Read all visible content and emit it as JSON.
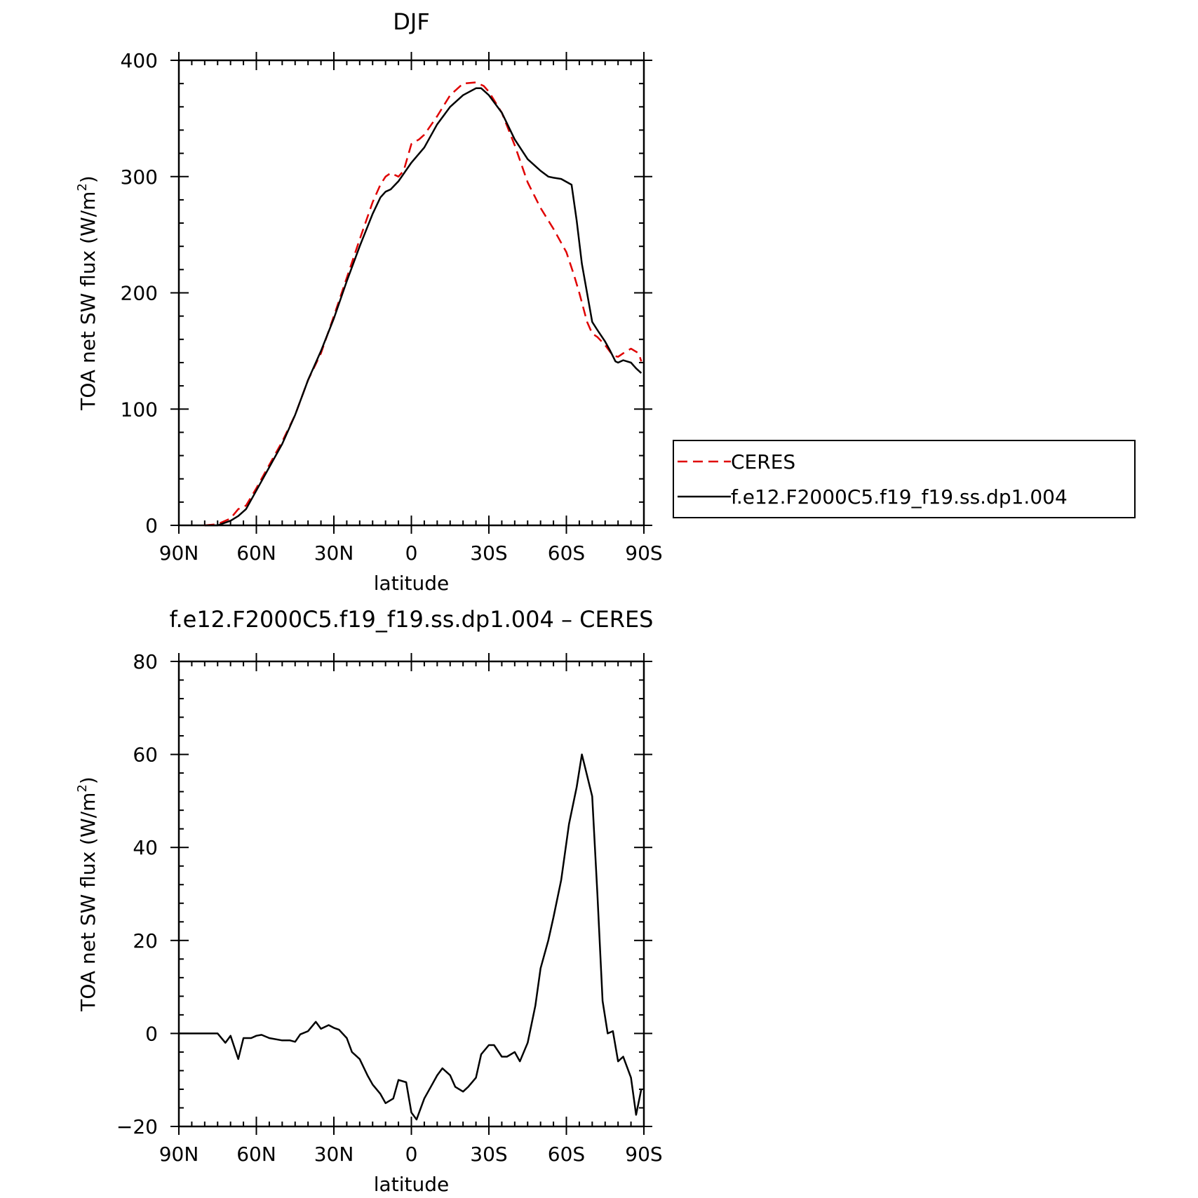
{
  "chart_data": [
    {
      "type": "line",
      "title": "DJF",
      "xlabel": "latitude",
      "ylabel_main": "TOA net SW flux (W/m",
      "ylabel_sup": "2",
      "ylabel_close": ")",
      "xlim": [
        90,
        -90
      ],
      "ylim": [
        0,
        400
      ],
      "x_ticks": [
        {
          "value": 90,
          "label": "90N"
        },
        {
          "value": 60,
          "label": "60N"
        },
        {
          "value": 30,
          "label": "30N"
        },
        {
          "value": 0,
          "label": "0"
        },
        {
          "value": -30,
          "label": "30S"
        },
        {
          "value": -60,
          "label": "60S"
        },
        {
          "value": -90,
          "label": "90S"
        }
      ],
      "y_ticks": [
        {
          "value": 0,
          "label": "0"
        },
        {
          "value": 100,
          "label": "100"
        },
        {
          "value": 200,
          "label": "200"
        },
        {
          "value": 300,
          "label": "300"
        },
        {
          "value": 400,
          "label": "400"
        }
      ],
      "legend_position": "right",
      "series": [
        {
          "name": "CERES",
          "color": "#e00000",
          "dashed": true,
          "x": [
            80,
            75,
            70,
            67,
            64,
            60,
            55,
            50,
            45,
            40,
            35,
            30,
            25,
            20,
            15,
            12,
            10,
            8,
            5,
            3,
            0,
            -3,
            -5,
            -10,
            -15,
            -20,
            -25,
            -28,
            -30,
            -35,
            -40,
            -45,
            -50,
            -55,
            -60,
            -63,
            -65,
            -68,
            -70,
            -72,
            -75,
            -78,
            -80,
            -82,
            -85,
            -88,
            -89
          ],
          "y": [
            0,
            1,
            6,
            14,
            17,
            32,
            52,
            72,
            95,
            125,
            148,
            180,
            213,
            246,
            278,
            293,
            300,
            303,
            300,
            305,
            328,
            332,
            336,
            352,
            370,
            380,
            381,
            378,
            373,
            355,
            327,
            295,
            273,
            255,
            235,
            215,
            200,
            175,
            165,
            162,
            155,
            146,
            145,
            148,
            152,
            148,
            141
          ]
        },
        {
          "name": "f.e12.F2000C5.f19_f19.ss.dp1.004",
          "color": "#000000",
          "dashed": false,
          "x": [
            80,
            75,
            70,
            67,
            64,
            60,
            55,
            50,
            45,
            40,
            35,
            30,
            25,
            20,
            15,
            12,
            10,
            8,
            5,
            0,
            -5,
            -10,
            -15,
            -20,
            -25,
            -27,
            -30,
            -35,
            -40,
            -45,
            -50,
            -53,
            -55,
            -58,
            -62,
            -64,
            -66,
            -70,
            -72,
            -75,
            -77,
            -79,
            -80,
            -82,
            -85,
            -87,
            -89
          ],
          "y": [
            0,
            0,
            4,
            8,
            14,
            30,
            50,
            70,
            95,
            125,
            150,
            178,
            210,
            240,
            268,
            282,
            287,
            289,
            296,
            312,
            325,
            345,
            360,
            370,
            376,
            376,
            370,
            355,
            332,
            315,
            305,
            300,
            299,
            298,
            293,
            262,
            225,
            175,
            168,
            158,
            150,
            141,
            140,
            142,
            140,
            135,
            131
          ]
        }
      ]
    },
    {
      "type": "line",
      "title": "f.e12.F2000C5.f19_f19.ss.dp1.004 – CERES",
      "xlabel": "latitude",
      "ylabel_main": "TOA net SW flux (W/m",
      "ylabel_sup": "2",
      "ylabel_close": ")",
      "xlim": [
        90,
        -90
      ],
      "ylim": [
        -20,
        80
      ],
      "x_ticks": [
        {
          "value": 90,
          "label": "90N"
        },
        {
          "value": 60,
          "label": "60N"
        },
        {
          "value": 30,
          "label": "30N"
        },
        {
          "value": 0,
          "label": "0"
        },
        {
          "value": -30,
          "label": "30S"
        },
        {
          "value": -60,
          "label": "60S"
        },
        {
          "value": -90,
          "label": "90S"
        }
      ],
      "y_ticks": [
        {
          "value": -20,
          "label": "−20"
        },
        {
          "value": 0,
          "label": "0"
        },
        {
          "value": 20,
          "label": "20"
        },
        {
          "value": 40,
          "label": "40"
        },
        {
          "value": 60,
          "label": "60"
        },
        {
          "value": 80,
          "label": "80"
        }
      ],
      "series": [
        {
          "name": "",
          "color": "#000000",
          "dashed": false,
          "x": [
            90,
            85,
            80,
            75,
            72,
            70,
            67,
            65,
            62,
            60,
            58,
            55,
            50,
            47,
            45,
            43,
            40,
            37,
            35,
            32,
            30,
            28,
            25,
            23,
            20,
            17,
            15,
            12,
            10,
            7,
            5,
            2,
            0,
            -2,
            -5,
            -8,
            -10,
            -12,
            -15,
            -17,
            -20,
            -22,
            -25,
            -27,
            -30,
            -32,
            -35,
            -37,
            -40,
            -42,
            -45,
            -48,
            -50,
            -53,
            -55,
            -58,
            -61,
            -64,
            -66,
            -70,
            -72,
            -74,
            -76,
            -78,
            -80,
            -82,
            -85,
            -87,
            -89
          ],
          "y": [
            0,
            0,
            0,
            0,
            -2,
            -0.5,
            -5.5,
            -1,
            -1,
            -0.5,
            -0.3,
            -1,
            -1.5,
            -1.5,
            -1.8,
            -0.2,
            0.5,
            2.5,
            1,
            1.8,
            1.2,
            0.8,
            -1,
            -4,
            -5.5,
            -9,
            -11,
            -13,
            -15,
            -14,
            -10,
            -10.5,
            -17,
            -18.5,
            -14,
            -11,
            -9,
            -7.5,
            -9,
            -11.5,
            -12.5,
            -11.5,
            -9.5,
            -4.5,
            -2.5,
            -2.5,
            -5,
            -5,
            -4,
            -6,
            -2,
            6,
            14,
            20,
            25,
            33,
            45,
            53,
            60,
            51,
            30,
            7,
            0,
            0.5,
            -6,
            -5,
            -9.5,
            -17.5,
            -12
          ]
        }
      ]
    }
  ]
}
